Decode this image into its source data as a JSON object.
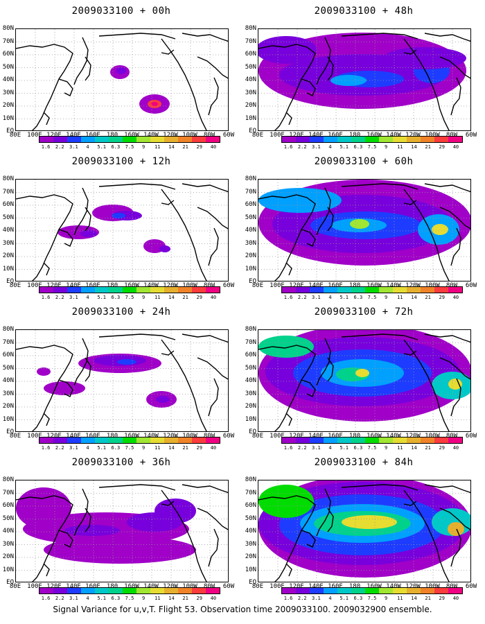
{
  "panels": [
    {
      "title": "2009033100 + 00h",
      "level": 0
    },
    {
      "title": "2009033100 + 48h",
      "level": 4
    },
    {
      "title": "2009033100 + 12h",
      "level": 1
    },
    {
      "title": "2009033100 + 60h",
      "level": 5
    },
    {
      "title": "2009033100 + 24h",
      "level": 2
    },
    {
      "title": "2009033100 + 72h",
      "level": 6
    },
    {
      "title": "2009033100 + 36h",
      "level": 3
    },
    {
      "title": "2009033100 + 84h",
      "level": 7
    }
  ],
  "y_labels": [
    "80N",
    "70N",
    "60N",
    "50N",
    "40N",
    "30N",
    "20N",
    "10N",
    "EQ"
  ],
  "x_labels": [
    "80E",
    "100E",
    "120E",
    "140E",
    "160E",
    "180",
    "160W",
    "140W",
    "120W",
    "100W",
    "80W",
    "60W"
  ],
  "colorbar": {
    "labels": [
      "1.6",
      "2.2",
      "3.1",
      "4",
      "5.1",
      "6.3",
      "7.5",
      "9",
      "11",
      "14",
      "21",
      "29",
      "40"
    ],
    "colors": [
      "#a000c8",
      "#7800dc",
      "#1e3cff",
      "#00a0ff",
      "#00c8c8",
      "#00d28c",
      "#00dc00",
      "#a0e632",
      "#e6dc32",
      "#e6af2d",
      "#f08228",
      "#fa3c3c",
      "#f00082"
    ]
  },
  "footer": "Signal Variance for u,v,T. Flight 53. Observation time 2009033100. 2009032900 ensemble."
}
